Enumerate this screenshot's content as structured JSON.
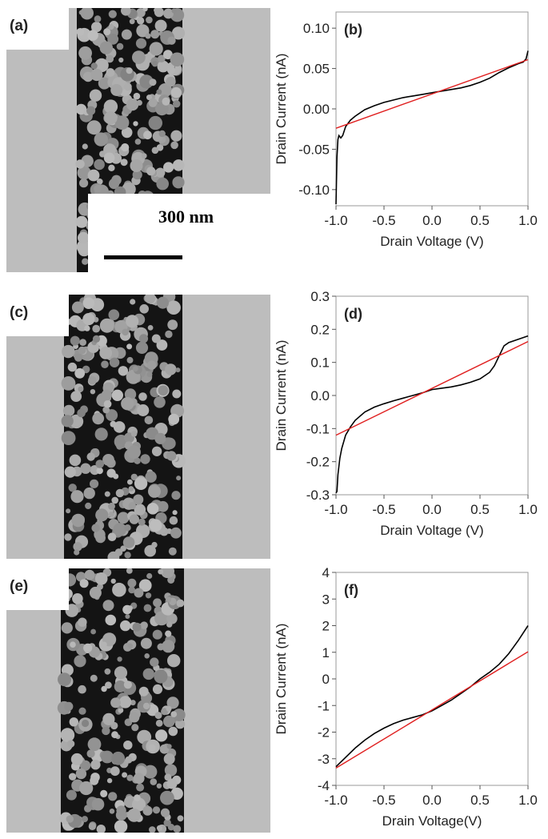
{
  "panels": [
    {
      "sem_label": "(a)",
      "scale_bar_label": "300 nm",
      "chart_label": "(b)"
    },
    {
      "sem_label": "(c)",
      "chart_label": "(d)"
    },
    {
      "sem_label": "(e)",
      "chart_label": "(f)"
    }
  ],
  "colors": {
    "measured": "#000000",
    "fit": "#e02020",
    "electrode": "#bdbdbd",
    "gap": "#141414",
    "particle": "#a8a8a8"
  },
  "chart_data": [
    {
      "type": "line",
      "title": "",
      "xlabel": "Drain Voltage (V)",
      "ylabel": "Drain Current (nA)",
      "xlim": [
        -1.0,
        1.0
      ],
      "ylim": [
        -0.12,
        0.12
      ],
      "xticks": [
        "-1.0",
        "-0.5",
        "0.0",
        "0.5",
        "1.0"
      ],
      "yticks": [
        "-0.10",
        "-0.05",
        "0.00",
        "0.05",
        "0.10"
      ],
      "xtick_values": [
        -1.0,
        -0.5,
        0.0,
        0.5,
        1.0
      ],
      "ytick_values": [
        -0.1,
        -0.05,
        0.0,
        0.05,
        0.1
      ],
      "series": [
        {
          "x": [
            -1.0,
            -0.99,
            -0.98,
            -0.97,
            -0.95,
            -0.93,
            -0.9,
            -0.85,
            -0.8,
            -0.7,
            -0.6,
            -0.5,
            -0.4,
            -0.3,
            -0.2,
            -0.1,
            0.0,
            0.1,
            0.2,
            0.3,
            0.4,
            0.5,
            0.6,
            0.7,
            0.8,
            0.9,
            0.95,
            0.98,
            1.0
          ],
          "y": [
            -0.118,
            -0.06,
            -0.038,
            -0.033,
            -0.036,
            -0.033,
            -0.022,
            -0.014,
            -0.009,
            -0.001,
            0.004,
            0.008,
            0.011,
            0.014,
            0.016,
            0.018,
            0.02,
            0.022,
            0.024,
            0.026,
            0.029,
            0.033,
            0.038,
            0.045,
            0.051,
            0.056,
            0.058,
            0.062,
            0.072
          ]
        },
        {
          "x": [
            -1.0,
            1.0
          ],
          "y": [
            -0.024,
            0.061
          ]
        }
      ]
    },
    {
      "type": "line",
      "title": "",
      "xlabel": "Drain Voltage (V)",
      "ylabel": "Drain Current (nA)",
      "xlim": [
        -1.0,
        1.0
      ],
      "ylim": [
        -0.3,
        0.3
      ],
      "xticks": [
        "-1.0",
        "-0.5",
        "0.0",
        "0.5",
        "1.0"
      ],
      "yticks": [
        "-0.3",
        "-0.2",
        "-0.1",
        "0.0",
        "0.1",
        "0.2",
        "0.3"
      ],
      "xtick_values": [
        -1.0,
        -0.5,
        0.0,
        0.5,
        1.0
      ],
      "ytick_values": [
        -0.3,
        -0.2,
        -0.1,
        0.0,
        0.1,
        0.2,
        0.3
      ],
      "series": [
        {
          "x": [
            -1.0,
            -0.99,
            -0.98,
            -0.96,
            -0.94,
            -0.92,
            -0.9,
            -0.85,
            -0.8,
            -0.7,
            -0.6,
            -0.5,
            -0.4,
            -0.3,
            -0.2,
            -0.1,
            0.0,
            0.1,
            0.2,
            0.3,
            0.4,
            0.5,
            0.6,
            0.65,
            0.7,
            0.75,
            0.8,
            0.9,
            1.0
          ],
          "y": [
            -0.295,
            -0.29,
            -0.24,
            -0.19,
            -0.16,
            -0.14,
            -0.12,
            -0.095,
            -0.075,
            -0.05,
            -0.035,
            -0.025,
            -0.016,
            -0.008,
            0.0,
            0.008,
            0.018,
            0.022,
            0.026,
            0.032,
            0.04,
            0.05,
            0.07,
            0.09,
            0.12,
            0.15,
            0.16,
            0.17,
            0.18
          ]
        },
        {
          "x": [
            -1.0,
            1.0
          ],
          "y": [
            -0.12,
            0.163
          ]
        }
      ]
    },
    {
      "type": "line",
      "title": "",
      "xlabel": "Drain Voltage(V)",
      "ylabel": "Drain Current (nA)",
      "xlim": [
        -1.0,
        1.0
      ],
      "ylim": [
        -4,
        4
      ],
      "xticks": [
        "-1.0",
        "-0.5",
        "0.0",
        "0.5",
        "1.0"
      ],
      "yticks": [
        "-4",
        "-3",
        "-2",
        "-1",
        "0",
        "1",
        "2",
        "3",
        "4"
      ],
      "xtick_values": [
        -1.0,
        -0.5,
        0.0,
        0.5,
        1.0
      ],
      "ytick_values": [
        -4,
        -3,
        -2,
        -1,
        0,
        1,
        2,
        3,
        4
      ],
      "series": [
        {
          "x": [
            -1.0,
            -0.9,
            -0.8,
            -0.7,
            -0.6,
            -0.5,
            -0.4,
            -0.3,
            -0.2,
            -0.1,
            0.0,
            0.1,
            0.2,
            0.3,
            0.4,
            0.5,
            0.6,
            0.7,
            0.8,
            0.9,
            1.0
          ],
          "y": [
            -3.3,
            -2.95,
            -2.6,
            -2.3,
            -2.05,
            -1.85,
            -1.68,
            -1.55,
            -1.45,
            -1.35,
            -1.2,
            -1.0,
            -0.8,
            -0.55,
            -0.3,
            0.0,
            0.25,
            0.55,
            0.95,
            1.45,
            2.0
          ]
        },
        {
          "x": [
            -1.0,
            1.0
          ],
          "y": [
            -3.35,
            1.02
          ]
        }
      ]
    }
  ]
}
